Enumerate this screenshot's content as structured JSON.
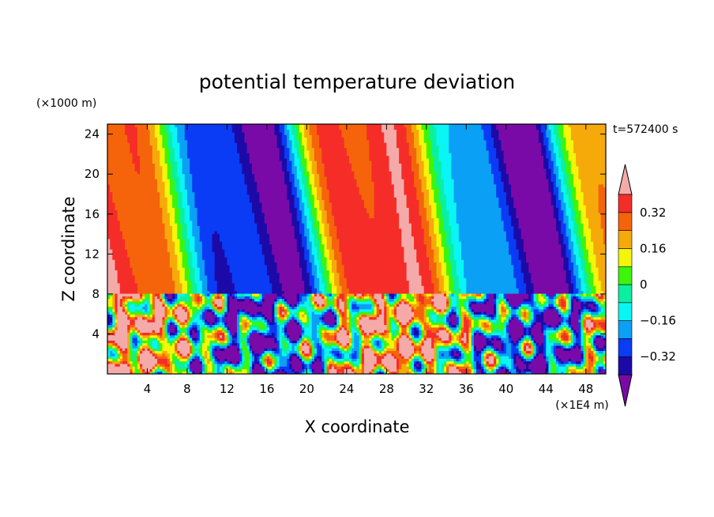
{
  "chart_data": {
    "type": "heatmap",
    "title": "potential temperature deviation",
    "xlabel": "X coordinate",
    "ylabel": "Z coordinate",
    "x_unit": "(×1E4 m)",
    "y_unit": "(×1000 m)",
    "time_label": "t=572400 s",
    "xlim": [
      0,
      50
    ],
    "ylim": [
      0,
      25
    ],
    "x_ticks": [
      4,
      8,
      12,
      16,
      20,
      24,
      28,
      32,
      36,
      40,
      44,
      48
    ],
    "y_ticks": [
      4,
      8,
      12,
      16,
      20,
      24
    ],
    "levels": [
      -0.4,
      -0.32,
      -0.24,
      -0.16,
      -0.08,
      0,
      0.08,
      0.16,
      0.24,
      0.32,
      0.4
    ],
    "colorbar_labels": [
      "0.32",
      "0.16",
      "0",
      "−0.16",
      "−0.32"
    ],
    "colorbar_label_values": [
      0.32,
      0.16,
      0,
      -0.16,
      -0.32
    ],
    "colors": [
      "#7a0aa8",
      "#1c0aa8",
      "#0a3cf5",
      "#0aa0f5",
      "#0af5f5",
      "#0af0a0",
      "#3cf50a",
      "#f5f50a",
      "#f5aa0a",
      "#f5640a",
      "#f52d28",
      "#f5aaaa"
    ],
    "interface_height": 8
  }
}
